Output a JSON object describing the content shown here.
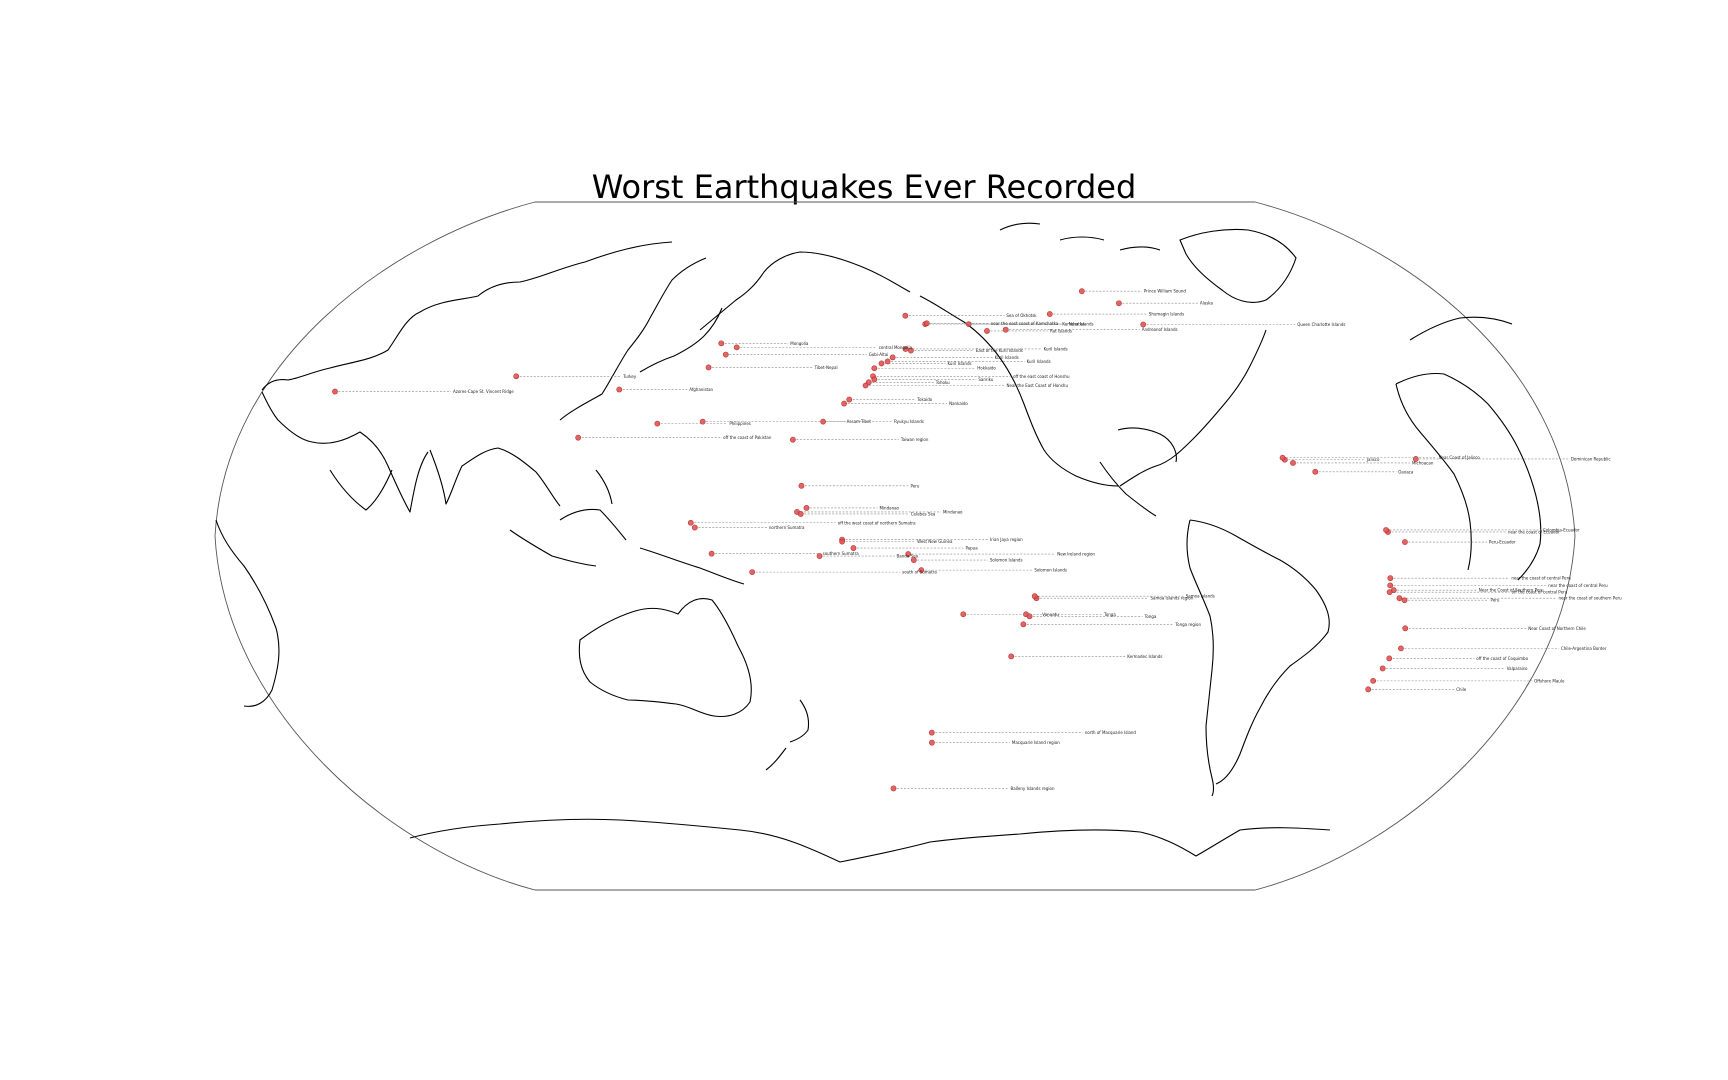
{
  "title": "Worst Earthquakes Ever Recorded",
  "marker_color": "#e25555",
  "earthquakes": [
    {
      "name": "Prince William Sound",
      "lat": 61.0,
      "lon": -147.7
    },
    {
      "name": "Shumagin Islands",
      "lat": 55.3,
      "lon": -160.5
    },
    {
      "name": "Andreanof Islands",
      "lat": 51.4,
      "lon": -175.5
    },
    {
      "name": "Rat Islands",
      "lat": 51.1,
      "lon": 178.6
    },
    {
      "name": "Near Islands",
      "lat": 52.8,
      "lon": 173.2
    },
    {
      "name": "Kamchatka",
      "lat": 52.8,
      "lon": 159.5
    },
    {
      "name": "near the east coast of Kamchatka",
      "lat": 53.0,
      "lon": 160.0
    },
    {
      "name": "Sea of Okhotsk",
      "lat": 54.9,
      "lon": 153.3
    },
    {
      "name": "Kuril Islands",
      "lat": 46.6,
      "lon": 153.2
    },
    {
      "name": "East of the Kuril Islands",
      "lat": 46.2,
      "lon": 154.8
    },
    {
      "name": "Kuril Islands",
      "lat": 44.5,
      "lon": 149.3
    },
    {
      "name": "Kuril Islands",
      "lat": 43.5,
      "lon": 147.8
    },
    {
      "name": "Kuril Islands",
      "lat": 43.0,
      "lon": 146.0
    },
    {
      "name": "Hokkaido",
      "lat": 41.8,
      "lon": 143.9
    },
    {
      "name": "off the east coast of Honshu",
      "lat": 39.8,
      "lon": 143.6
    },
    {
      "name": "Tohoku",
      "lat": 38.3,
      "lon": 142.4
    },
    {
      "name": "Sanriku",
      "lat": 39.0,
      "lon": 144.0
    },
    {
      "name": "Near the East Coast of Honshu",
      "lat": 37.5,
      "lon": 141.5
    },
    {
      "name": "Tokaido",
      "lat": 34.0,
      "lon": 137.0
    },
    {
      "name": "Nankaido",
      "lat": 33.0,
      "lon": 135.6
    },
    {
      "name": "central Mongolia",
      "lat": 47.0,
      "lon": 102.0
    },
    {
      "name": "Mongolia",
      "lat": 48.0,
      "lon": 97.0
    },
    {
      "name": "Tibet-Nepal",
      "lat": 42.0,
      "lon": 95.0
    },
    {
      "name": "Gobi-Altai",
      "lat": 45.2,
      "lon": 99.2
    },
    {
      "name": "Afghanistan",
      "lat": 36.5,
      "lon": 70.8
    },
    {
      "name": "Turkey",
      "lat": 39.8,
      "lon": 39.5
    },
    {
      "name": "Assam-Tibet",
      "lat": 28.5,
      "lon": 96.5
    },
    {
      "name": "Ryukyu Islands",
      "lat": 28.5,
      "lon": 130.0
    },
    {
      "name": "Taiwan region",
      "lat": 24.0,
      "lon": 122.0
    },
    {
      "name": "off the coast of Pakistan",
      "lat": 24.5,
      "lon": 63.0
    },
    {
      "name": "Philippines",
      "lat": 28.0,
      "lon": 84.0
    },
    {
      "name": "Peru",
      "lat": 12.5,
      "lon": 125.0
    },
    {
      "name": "Mindanao",
      "lat": 6.0,
      "lon": 124.0
    },
    {
      "name": "Mindanao",
      "lat": 7.0,
      "lon": 126.5
    },
    {
      "name": "Celebes Sea",
      "lat": 5.5,
      "lon": 125.0
    },
    {
      "name": "off the west coast of northern Sumatra",
      "lat": 3.3,
      "lon": 95.9
    },
    {
      "name": "northern Sumatra",
      "lat": 2.1,
      "lon": 97.0
    },
    {
      "name": "southern Sumatra",
      "lat": -4.4,
      "lon": 101.4
    },
    {
      "name": "Irian Jaya region",
      "lat": -0.9,
      "lon": 136.0
    },
    {
      "name": "West New Guinea",
      "lat": -1.4,
      "lon": 136.0
    },
    {
      "name": "Papua",
      "lat": -3.0,
      "lon": 139.0
    },
    {
      "name": "New Ireland region",
      "lat": -4.5,
      "lon": 153.5
    },
    {
      "name": "Solomon Islands",
      "lat": -6.0,
      "lon": 155.0
    },
    {
      "name": "Solomon Islands",
      "lat": -8.5,
      "lon": 157.0
    },
    {
      "name": "south of Sumatra",
      "lat": -9.0,
      "lon": 112.0
    },
    {
      "name": "Banda Sea",
      "lat": -5.0,
      "lon": 130.0
    },
    {
      "name": "Samoa Islands region",
      "lat": -15.5,
      "lon": -172.0
    },
    {
      "name": "Samoa Islands",
      "lat": -15.0,
      "lon": -172.5
    },
    {
      "name": "Tonga",
      "lat": -19.5,
      "lon": -174.5
    },
    {
      "name": "Tonga",
      "lat": -20.0,
      "lon": -173.5
    },
    {
      "name": "Tonga region",
      "lat": -22.0,
      "lon": -175.0
    },
    {
      "name": "Vanuatu",
      "lat": -19.5,
      "lon": 168.5
    },
    {
      "name": "Kermadec Islands",
      "lat": -30.0,
      "lon": -177.5
    },
    {
      "name": "north of Macquarie Island",
      "lat": -49.0,
      "lon": 161.3
    },
    {
      "name": "Macquarie Island region",
      "lat": -51.5,
      "lon": 161.5
    },
    {
      "name": "Balleny Islands region",
      "lat": -62.9,
      "lon": 149.5
    },
    {
      "name": "Queen Charlotte Islands",
      "lat": 52.7,
      "lon": -132.0
    },
    {
      "name": "Alaska",
      "lat": 58.0,
      "lon": -137.0
    },
    {
      "name": "Azores-Cape St. Vincent Ridge",
      "lat": 36.0,
      "lon": -10.5
    },
    {
      "name": "Dominican Republic",
      "lat": 19.2,
      "lon": -69.0
    },
    {
      "name": "Jalisco",
      "lat": 19.0,
      "lon": -104.5
    },
    {
      "name": "Michoacan",
      "lat": 18.2,
      "lon": -102.5
    },
    {
      "name": "Near Coast of Jalisco",
      "lat": 19.5,
      "lon": -105.0
    },
    {
      "name": "Oaxaca",
      "lat": 16.0,
      "lon": -97.0
    },
    {
      "name": "near the coast of Ecuador",
      "lat": 1.0,
      "lon": -79.5
    },
    {
      "name": "Colombia-Ecuador",
      "lat": 1.5,
      "lon": -80.0
    },
    {
      "name": "Peru-Ecuador",
      "lat": -1.5,
      "lon": -75.0
    },
    {
      "name": "near the coast of central Peru",
      "lat": -10.5,
      "lon": -78.0
    },
    {
      "name": "near the coast of central Peru",
      "lat": -12.3,
      "lon": -77.7
    },
    {
      "name": "Near the Coast of Southern Peru",
      "lat": -13.5,
      "lon": -76.5
    },
    {
      "name": "off the coast of central Peru",
      "lat": -14.0,
      "lon": -77.5
    },
    {
      "name": "near the coast of southern Peru",
      "lat": -15.5,
      "lon": -74.5
    },
    {
      "name": "Peru",
      "lat": -16.0,
      "lon": -73.0
    },
    {
      "name": "Near Coast of Northern Chile",
      "lat": -23.0,
      "lon": -70.5
    },
    {
      "name": "Chile-Argentina Border",
      "lat": -28.0,
      "lon": -69.5
    },
    {
      "name": "off the coast of Coquimbo",
      "lat": -30.5,
      "lon": -71.5
    },
    {
      "name": "Valparaiso",
      "lat": -33.0,
      "lon": -72.0
    },
    {
      "name": "Offshore Maule",
      "lat": -36.1,
      "lon": -72.9
    },
    {
      "name": "Chile",
      "lat": -38.2,
      "lon": -73.0
    }
  ]
}
